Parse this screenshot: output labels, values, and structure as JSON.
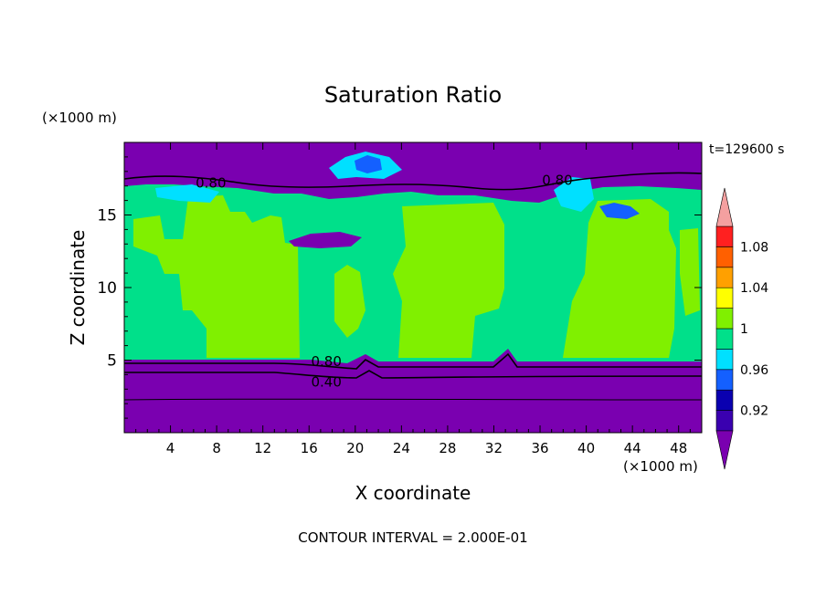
{
  "chart_data": {
    "type": "heatmap",
    "title": "Saturation Ratio",
    "xlabel": "X coordinate",
    "ylabel": "Z coordinate",
    "x_unit": "(×1000 m)",
    "y_unit": "(×1000 m)",
    "time_label": "t=129600 s",
    "footer": "CONTOUR INTERVAL = 2.000E-01",
    "xlim": [
      0,
      50
    ],
    "ylim": [
      0,
      20
    ],
    "x_ticks": [
      4,
      8,
      12,
      16,
      20,
      24,
      28,
      32,
      36,
      40,
      44,
      48
    ],
    "y_ticks": [
      5,
      10,
      15
    ],
    "contour_labels": [
      {
        "text": "0.80",
        "x": 7.5,
        "z": 17.2
      },
      {
        "text": "0.80",
        "x": 37.5,
        "z": 17.4
      },
      {
        "text": "0.80",
        "x": 17.5,
        "z": 4.9
      },
      {
        "text": "0.40",
        "x": 17.5,
        "z": 3.5
      }
    ],
    "colorbar": {
      "levels": [
        0.9,
        0.92,
        0.94,
        0.96,
        0.98,
        1.0,
        1.02,
        1.04,
        1.06,
        1.08,
        1.1
      ],
      "labels": [
        "0.92",
        "0.96",
        "1",
        "1.04",
        "1.08"
      ],
      "label_values": [
        0.92,
        0.96,
        1.0,
        1.04,
        1.08
      ],
      "colors": [
        "#5a00a8",
        "#3a00b0",
        "#0a00b0",
        "#1460ff",
        "#00e0ff",
        "#00e08a",
        "#80f000",
        "#ffff00",
        "#ffa000",
        "#ff6000",
        "#ff2020",
        "#f4a0a0"
      ],
      "under_color": "#7a00b0",
      "over_color": "#f4a0a0"
    },
    "regions": {
      "lower_band_color": "#7a00b0",
      "upper_band_color": "#7a00b0",
      "mid_layer_color": "#00e08a",
      "high_plateau_color": "#80f000",
      "cloud_color": "#00e0ff",
      "dense_cloud_color": "#1460ff"
    }
  }
}
